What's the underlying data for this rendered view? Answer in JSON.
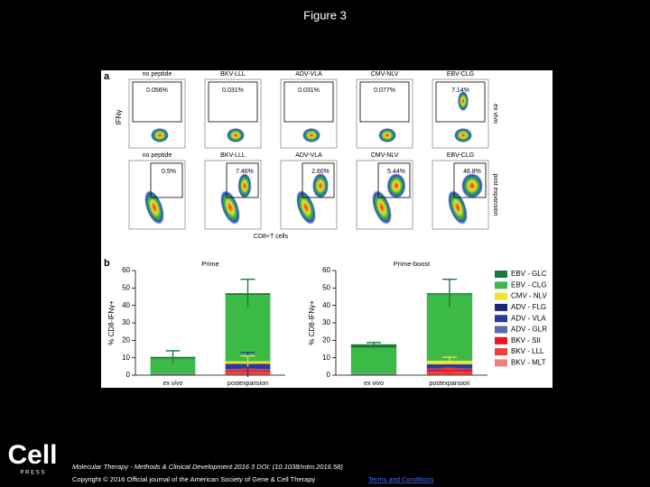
{
  "title": "Figure 3",
  "panel_a": {
    "label": "a",
    "y_axis_label": "IFNγ",
    "x_axis_label": "CD8+T cells",
    "rows": [
      {
        "side_label": "ex vivo",
        "plots": [
          {
            "peptide": "no peptide",
            "percent": "0.056%"
          },
          {
            "peptide": "BKV-LLL",
            "percent": "0.031%"
          },
          {
            "peptide": "ADV-VLA",
            "percent": "0.031%"
          },
          {
            "peptide": "CMV-NLV",
            "percent": "0.077%"
          },
          {
            "peptide": "EBV-CLG",
            "percent": "7.14%"
          }
        ]
      },
      {
        "side_label": "post expansion",
        "plots": [
          {
            "peptide": "no peptide",
            "percent": "0.5%"
          },
          {
            "peptide": "BKV-LLL",
            "percent": "7.46%"
          },
          {
            "peptide": "ADV-VLA",
            "percent": "2.60%"
          },
          {
            "peptide": "CMV-NLV",
            "percent": "5.44%"
          },
          {
            "peptide": "EBV-CLG",
            "percent": "46.8%"
          }
        ]
      }
    ]
  },
  "panel_b": {
    "label": "b"
  },
  "chart_data": [
    {
      "type": "bar",
      "stacked": true,
      "title": "Prime",
      "y_label": "% CD8-IFNγ+",
      "categories": [
        "ex vivo",
        "postexpansion"
      ],
      "ylim": [
        0,
        60
      ],
      "yticks": [
        0,
        10,
        20,
        30,
        40,
        50,
        60
      ],
      "series": [
        {
          "name": "BKV - MLT",
          "color": "#f08080",
          "values": [
            0.1,
            0.5
          ],
          "errors": [
            null,
            null
          ]
        },
        {
          "name": "BKV - LLL",
          "color": "#e8403a",
          "values": [
            0.1,
            1.5
          ],
          "errors": [
            null,
            1.5
          ]
        },
        {
          "name": "BKV - SII",
          "color": "#f01020",
          "values": [
            0.1,
            1
          ],
          "errors": [
            null,
            null
          ]
        },
        {
          "name": "ADV - GLR",
          "color": "#5a6aa8",
          "values": [
            0.1,
            0.5
          ],
          "errors": [
            null,
            null
          ]
        },
        {
          "name": "ADV - VLA",
          "color": "#2a3aa0",
          "values": [
            0.1,
            2.5
          ],
          "errors": [
            null,
            7
          ]
        },
        {
          "name": "ADV - FLG",
          "color": "#1a2a70",
          "values": [
            0.1,
            0.5
          ],
          "errors": [
            null,
            null
          ]
        },
        {
          "name": "CMV - NLV",
          "color": "#f0e030",
          "values": [
            0.1,
            1.5
          ],
          "errors": [
            null,
            3
          ]
        },
        {
          "name": "EBV - CLG",
          "color": "#3cba48",
          "values": [
            8.8,
            38
          ],
          "errors": [
            null,
            null
          ]
        },
        {
          "name": "EBV - GLC",
          "color": "#1a7a3a",
          "values": [
            1,
            1
          ],
          "errors": [
            3.5,
            8
          ]
        }
      ]
    },
    {
      "type": "bar",
      "stacked": true,
      "title": "Prime-boost",
      "y_label": "% CD8-IFNγ+",
      "categories": [
        "ex vivo",
        "postexpansion"
      ],
      "ylim": [
        0,
        60
      ],
      "yticks": [
        0,
        10,
        20,
        30,
        40,
        50,
        60
      ],
      "series": [
        {
          "name": "BKV - MLT",
          "color": "#f08080",
          "values": [
            0.1,
            0.5
          ],
          "errors": [
            null,
            null
          ]
        },
        {
          "name": "BKV - LLL",
          "color": "#e8403a",
          "values": [
            0.1,
            1.5
          ],
          "errors": [
            null,
            2
          ]
        },
        {
          "name": "BKV - SII",
          "color": "#f01020",
          "values": [
            0.1,
            1.5
          ],
          "errors": [
            null,
            null
          ]
        },
        {
          "name": "ADV - GLR",
          "color": "#5a6aa8",
          "values": [
            0.1,
            0.3
          ],
          "errors": [
            null,
            null
          ]
        },
        {
          "name": "ADV - VLA",
          "color": "#2a3aa0",
          "values": [
            0.1,
            2
          ],
          "errors": [
            null,
            null
          ]
        },
        {
          "name": "ADV - FLG",
          "color": "#1a2a70",
          "values": [
            0.1,
            0.5
          ],
          "errors": [
            null,
            null
          ]
        },
        {
          "name": "CMV - NLV",
          "color": "#f0e030",
          "values": [
            0.1,
            2
          ],
          "errors": [
            null,
            2
          ]
        },
        {
          "name": "EBV - CLG",
          "color": "#3cba48",
          "values": [
            15,
            38
          ],
          "errors": [
            null,
            null
          ]
        },
        {
          "name": "EBV - GLC",
          "color": "#1a7a3a",
          "values": [
            2,
            0.7
          ],
          "errors": [
            1,
            8
          ]
        }
      ]
    }
  ],
  "footer": {
    "logo": "Cell",
    "logo_sub": "P R E S S",
    "citation": "Molecular Therapy - Methods & Clinical Development 2016 3 DOI: (10.1038/mtm.2016.58)",
    "copyright": "Copyright © 2016 Official journal of the American Society of Gene & Cell Therapy",
    "link": "Terms and Conditions"
  }
}
